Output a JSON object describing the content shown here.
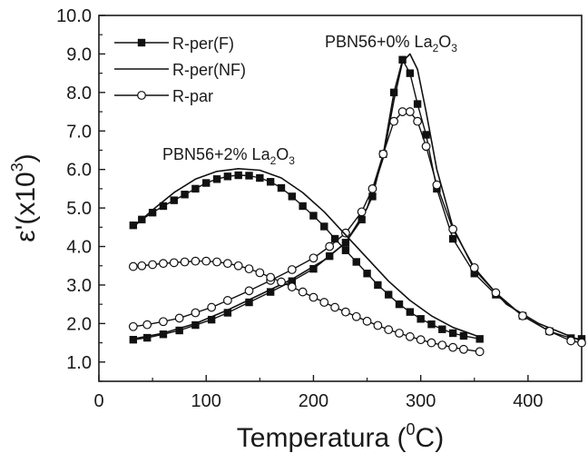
{
  "chart_data": {
    "type": "line",
    "xlabel": {
      "main": "Temperatura (",
      "sup": "0",
      "tail": "C)"
    },
    "ylabel": {
      "main": "ε'(x10",
      "sup": "3",
      "tail": ")"
    },
    "xlim": [
      0,
      450
    ],
    "ylim": [
      0.5,
      10.0
    ],
    "xticks": [
      "0",
      "100",
      "200",
      "300",
      "400"
    ],
    "yticks": [
      "1.0",
      "2.0",
      "3.0",
      "4.0",
      "5.0",
      "6.0",
      "7.0",
      "8.0",
      "9.0",
      "10.0"
    ],
    "grid": false,
    "legend_position": "top-left",
    "legend": [
      {
        "label": "R-per(F)",
        "marker": "filled-square"
      },
      {
        "label": "R-per(NF)",
        "marker": "none"
      },
      {
        "label": "R-par",
        "marker": "open-circle"
      }
    ],
    "annotations": [
      {
        "text": "PBN56+0% La",
        "sub1": "2",
        "mid": "O",
        "sub2": "3"
      },
      {
        "text": "PBN56+2% La",
        "sub1": "2",
        "mid": "O",
        "sub2": "3"
      }
    ],
    "series": [
      {
        "group": "PBN56+0% La2O3",
        "legend_label": "R-per(F)",
        "marker": "filled-square",
        "x": [
          32,
          45,
          60,
          75,
          90,
          105,
          120,
          140,
          160,
          180,
          200,
          215,
          230,
          245,
          255,
          265,
          275,
          283,
          290,
          297,
          305,
          315,
          330,
          350,
          370,
          395,
          420,
          440,
          450
        ],
        "y": [
          1.58,
          1.63,
          1.72,
          1.82,
          1.96,
          2.1,
          2.28,
          2.55,
          2.82,
          3.1,
          3.42,
          3.75,
          4.1,
          4.7,
          5.3,
          6.4,
          8.0,
          8.85,
          8.5,
          7.7,
          6.9,
          5.5,
          4.2,
          3.3,
          2.75,
          2.2,
          1.8,
          1.62,
          1.6
        ]
      },
      {
        "group": "PBN56+0% La2O3",
        "legend_label": "R-per(NF)",
        "marker": "none",
        "x": [
          32,
          60,
          90,
          120,
          150,
          180,
          210,
          230,
          250,
          265,
          275,
          283,
          290,
          297,
          305,
          315,
          330,
          350,
          380,
          410,
          450
        ],
        "y": [
          1.6,
          1.75,
          2.0,
          2.35,
          2.75,
          3.15,
          3.65,
          4.1,
          5.0,
          6.3,
          7.8,
          8.8,
          9.0,
          8.6,
          7.5,
          6.0,
          4.5,
          3.4,
          2.5,
          2.0,
          1.55
        ]
      },
      {
        "group": "PBN56+0% La2O3",
        "legend_label": "R-par",
        "marker": "open-circle",
        "x": [
          32,
          45,
          60,
          75,
          90,
          105,
          120,
          140,
          160,
          180,
          200,
          215,
          230,
          245,
          255,
          265,
          275,
          283,
          290,
          297,
          305,
          315,
          330,
          350,
          370,
          395,
          420,
          440,
          450
        ],
        "y": [
          1.92,
          1.97,
          2.05,
          2.14,
          2.28,
          2.42,
          2.6,
          2.85,
          3.12,
          3.4,
          3.7,
          4.0,
          4.35,
          4.9,
          5.5,
          6.4,
          7.25,
          7.5,
          7.5,
          7.25,
          6.6,
          5.6,
          4.45,
          3.45,
          2.8,
          2.2,
          1.8,
          1.55,
          1.5
        ]
      },
      {
        "group": "PBN56+2% La2O3",
        "legend_label": "R-per(F)",
        "marker": "filled-square",
        "x": [
          32,
          40,
          50,
          60,
          70,
          80,
          90,
          100,
          110,
          120,
          130,
          140,
          150,
          160,
          170,
          180,
          190,
          200,
          210,
          220,
          230,
          240,
          250,
          260,
          270,
          280,
          290,
          300,
          310,
          320,
          330,
          340,
          355
        ],
        "y": [
          4.55,
          4.7,
          4.88,
          5.05,
          5.2,
          5.35,
          5.5,
          5.65,
          5.75,
          5.82,
          5.85,
          5.84,
          5.78,
          5.68,
          5.52,
          5.3,
          5.05,
          4.8,
          4.52,
          4.2,
          3.9,
          3.6,
          3.3,
          3.0,
          2.75,
          2.5,
          2.3,
          2.12,
          1.98,
          1.85,
          1.75,
          1.68,
          1.6
        ]
      },
      {
        "group": "PBN56+2% La2O3",
        "legend_label": "R-per(NF)",
        "marker": "none",
        "x": [
          32,
          50,
          70,
          90,
          110,
          130,
          150,
          170,
          190,
          210,
          230,
          250,
          270,
          290,
          310,
          330,
          355
        ],
        "y": [
          4.5,
          4.95,
          5.4,
          5.75,
          5.95,
          6.02,
          5.98,
          5.78,
          5.4,
          4.9,
          4.3,
          3.7,
          3.1,
          2.6,
          2.2,
          1.9,
          1.65
        ]
      },
      {
        "group": "PBN56+2% La2O3",
        "legend_label": "R-par",
        "marker": "open-circle",
        "x": [
          32,
          40,
          50,
          60,
          70,
          80,
          90,
          100,
          110,
          120,
          130,
          140,
          150,
          160,
          170,
          180,
          190,
          200,
          210,
          220,
          230,
          240,
          250,
          260,
          270,
          280,
          290,
          300,
          310,
          320,
          330,
          340,
          355
        ],
        "y": [
          3.48,
          3.5,
          3.53,
          3.56,
          3.58,
          3.6,
          3.62,
          3.62,
          3.6,
          3.56,
          3.5,
          3.42,
          3.32,
          3.2,
          3.08,
          2.95,
          2.82,
          2.68,
          2.55,
          2.42,
          2.3,
          2.18,
          2.06,
          1.95,
          1.84,
          1.75,
          1.66,
          1.58,
          1.5,
          1.44,
          1.38,
          1.33,
          1.27
        ]
      }
    ]
  }
}
